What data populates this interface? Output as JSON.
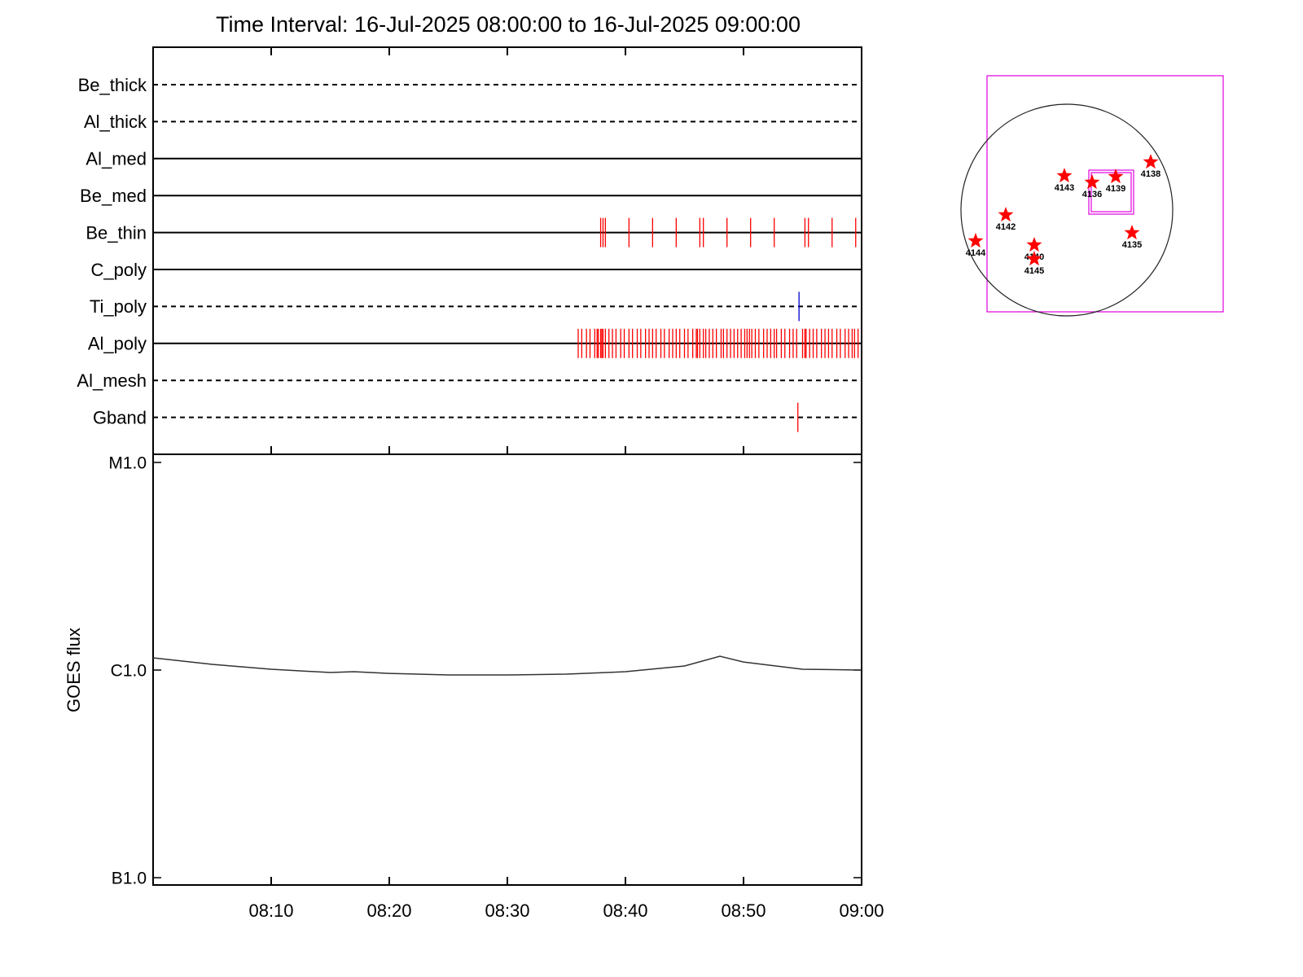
{
  "chart_data": [
    {
      "type": "timeline",
      "title": "Time Interval: 16-Jul-2025 08:00:00 to 16-Jul-2025 09:00:00",
      "categories": [
        "Be_thick",
        "Al_thick",
        "Al_med",
        "Be_med",
        "Be_thin",
        "C_poly",
        "Ti_poly",
        "Al_poly",
        "Al_mesh",
        "Gband"
      ],
      "line_styles": [
        "dashed",
        "dashed",
        "solid",
        "solid",
        "solid",
        "solid",
        "dashed",
        "solid",
        "dashed",
        "dashed"
      ],
      "colors": [
        "#ff0000",
        "#ff0000",
        "#ff0000",
        "#ff0000",
        "#ff0000",
        "#ff0000",
        "#0000cc",
        "#ff0000",
        "#ff0000",
        "#ff0000"
      ],
      "events": [
        [],
        [],
        [],
        [],
        [
          37.9,
          38.1,
          38.3,
          40.3,
          42.3,
          44.3,
          46.3,
          46.6,
          48.6,
          50.6,
          52.6,
          55.2,
          55.5,
          57.5,
          59.5
        ],
        [],
        [
          54.7
        ],
        [
          36.0,
          36.3,
          36.7,
          37.0,
          37.4,
          37.6,
          37.7,
          37.9,
          38.0,
          38.1,
          38.3,
          38.6,
          38.9,
          39.2,
          39.6,
          39.9,
          40.3,
          40.6,
          41.0,
          41.3,
          41.7,
          42.0,
          42.3,
          42.6,
          43.0,
          43.3,
          43.7,
          44.0,
          44.3,
          44.6,
          45.0,
          45.3,
          45.7,
          46.0,
          46.1,
          46.3,
          46.6,
          46.8,
          47.1,
          47.4,
          47.7,
          48.1,
          48.3,
          48.6,
          48.9,
          49.2,
          49.5,
          49.8,
          50.1,
          50.3,
          50.5,
          50.7,
          51.0,
          51.3,
          51.7,
          52.0,
          52.3,
          52.6,
          52.8,
          53.2,
          53.5,
          53.9,
          54.2,
          54.5,
          55.0,
          55.2,
          55.3,
          55.6,
          55.9,
          56.2,
          56.6,
          56.9,
          57.2,
          57.5,
          57.9,
          58.2,
          58.6,
          58.9,
          59.2,
          59.4,
          59.7
        ],
        [],
        [
          54.6
        ]
      ],
      "xlim": [
        0,
        60
      ]
    },
    {
      "type": "line",
      "ylabel": "GOES flux",
      "x": [
        0,
        5,
        10,
        15,
        17,
        20,
        25,
        30,
        35,
        40,
        45,
        48,
        50,
        55,
        60
      ],
      "values": [
        1.145e-06,
        1.065e-06,
        1.009e-06,
        9.73e-07,
        9.82e-07,
        9.64e-07,
        9.47e-07,
        9.47e-07,
        9.56e-07,
        9.82e-07,
        1.046e-06,
        1.166e-06,
        1.094e-06,
        1.009e-06,
        1e-06
      ],
      "color": "#333333",
      "log_scale": true,
      "xlim": [
        0,
        60
      ],
      "xticks": [
        {
          "value": 10,
          "label": "08:10"
        },
        {
          "value": 20,
          "label": "08:20"
        },
        {
          "value": 30,
          "label": "08:30"
        },
        {
          "value": 40,
          "label": "08:40"
        },
        {
          "value": 50,
          "label": "08:50"
        },
        {
          "value": 60,
          "label": "09:00"
        }
      ],
      "ylim": [
        1e-07,
        1e-05
      ],
      "yticks": [
        {
          "value": 1e-07,
          "label": "B1.0"
        },
        {
          "value": 1e-06,
          "label": "C1.0"
        },
        {
          "value": 1e-05,
          "label": "M1.0"
        }
      ]
    }
  ],
  "map": {
    "regions": [
      "4143",
      "4136",
      "4139",
      "4138",
      "4142",
      "4144",
      "4140",
      "4145",
      "4135"
    ]
  }
}
